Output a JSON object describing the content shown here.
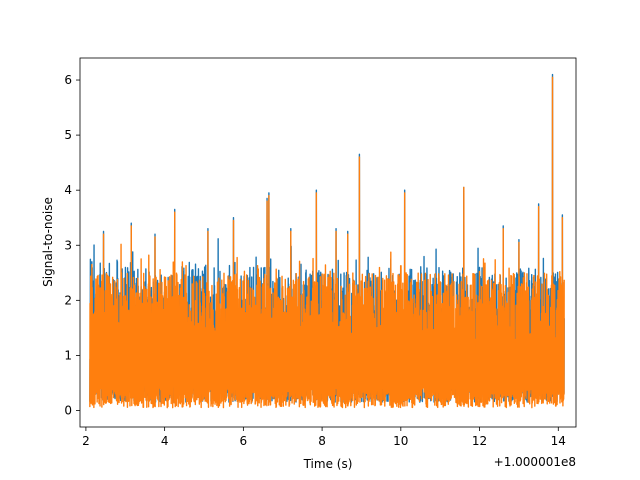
{
  "chart_data": {
    "type": "line",
    "title": "",
    "xlabel": "Time (s)",
    "ylabel": "Signal-to-noise",
    "x_offset_label": "+1.000001e8",
    "xlim": [
      1.85,
      14.45
    ],
    "ylim": [
      -0.3,
      6.4
    ],
    "grid": false,
    "legend": "none",
    "x_ticks": [
      2,
      4,
      6,
      8,
      10,
      12,
      14
    ],
    "x_tick_labels": [
      "2",
      "4",
      "6",
      "8",
      "10",
      "12",
      "14"
    ],
    "y_ticks": [
      0,
      1,
      2,
      3,
      4,
      5,
      6
    ],
    "y_tick_labels": [
      "0",
      "1",
      "2",
      "3",
      "4",
      "5",
      "6"
    ],
    "x_range": [
      2.1,
      14.15
    ],
    "series": [
      {
        "color": "#1f77b4",
        "peaks": [
          [
            2.15,
            2.7
          ],
          [
            2.45,
            3.25
          ],
          [
            3.15,
            3.4
          ],
          [
            3.75,
            3.2
          ],
          [
            4.25,
            3.65
          ],
          [
            5.1,
            3.3
          ],
          [
            5.75,
            3.5
          ],
          [
            6.6,
            3.85
          ],
          [
            6.65,
            3.95
          ],
          [
            7.2,
            3.3
          ],
          [
            7.85,
            4.0
          ],
          [
            8.35,
            3.3
          ],
          [
            8.65,
            3.25
          ],
          [
            8.95,
            4.65
          ],
          [
            10.1,
            4.0
          ],
          [
            11.6,
            4.05
          ],
          [
            12.6,
            3.35
          ],
          [
            13.0,
            3.1
          ],
          [
            13.5,
            3.75
          ],
          [
            13.85,
            6.1
          ],
          [
            14.1,
            3.55
          ]
        ],
        "baseline": 0.15,
        "typical_max": 2.6
      },
      {
        "color": "#ff7f0e",
        "peaks": [
          [
            2.15,
            2.65
          ],
          [
            2.45,
            3.2
          ],
          [
            3.15,
            3.35
          ],
          [
            3.75,
            3.15
          ],
          [
            4.25,
            3.6
          ],
          [
            5.1,
            3.25
          ],
          [
            5.75,
            3.45
          ],
          [
            6.6,
            3.8
          ],
          [
            6.65,
            3.9
          ],
          [
            7.2,
            3.25
          ],
          [
            7.85,
            3.95
          ],
          [
            8.35,
            3.25
          ],
          [
            8.65,
            3.2
          ],
          [
            8.95,
            4.6
          ],
          [
            10.1,
            3.95
          ],
          [
            11.6,
            4.05
          ],
          [
            12.6,
            3.3
          ],
          [
            13.0,
            3.05
          ],
          [
            13.5,
            3.7
          ],
          [
            13.85,
            6.05
          ],
          [
            14.1,
            3.5
          ]
        ],
        "baseline": 0.05,
        "typical_max": 2.5
      }
    ]
  }
}
